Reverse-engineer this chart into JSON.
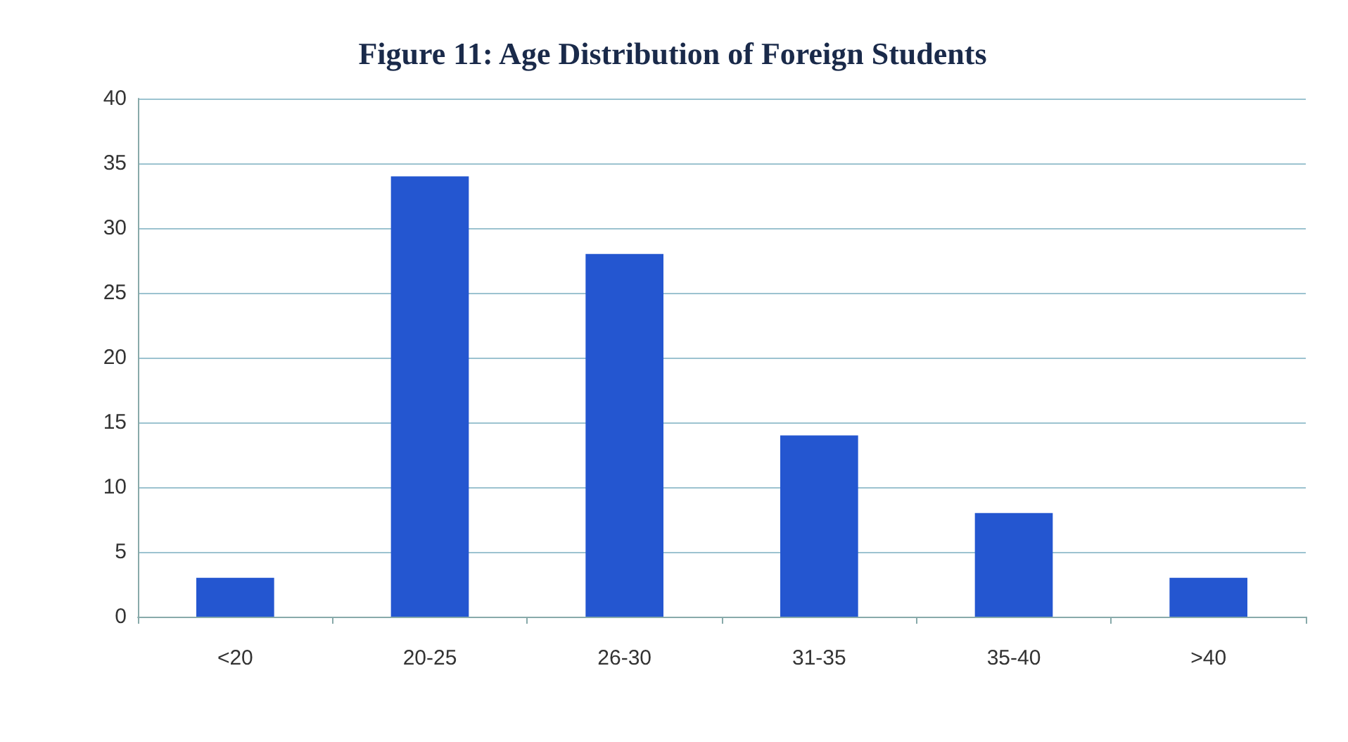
{
  "chart_data": {
    "type": "bar",
    "title": "Figure 11: Age Distribution of Foreign Students",
    "categories": [
      "<20",
      "20-25",
      "26-30",
      "31-35",
      "35-40",
      ">40"
    ],
    "values": [
      3,
      34,
      28,
      14,
      8,
      3
    ],
    "color": "#2456d0",
    "ylim": [
      0,
      40
    ],
    "yticks": [
      0,
      5,
      10,
      15,
      20,
      25,
      30,
      35,
      40
    ],
    "grid": "y"
  }
}
